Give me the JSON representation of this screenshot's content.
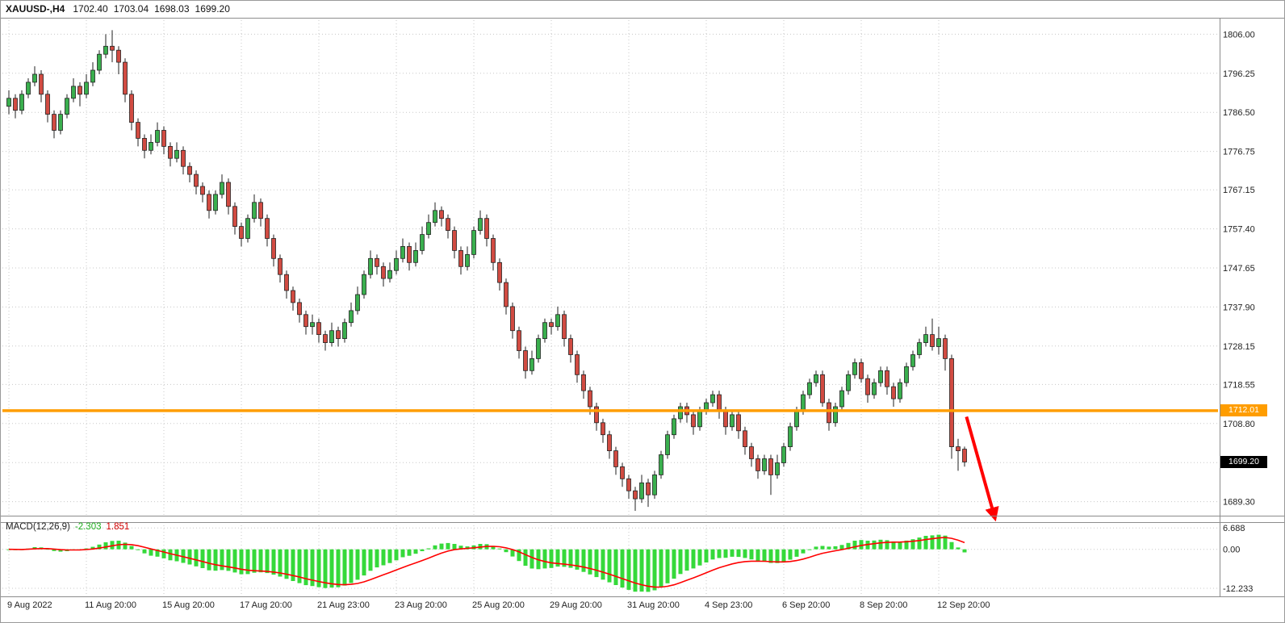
{
  "titlebar": {
    "symbol": "XAUUSD-,H4",
    "open": "1702.40",
    "high": "1703.04",
    "low": "1698.03",
    "close": "1699.20"
  },
  "indicator_label": {
    "name": "MACD(12,26,9)",
    "main_value": "-2.303",
    "signal_value": "1.851"
  },
  "overlays": {
    "hline_tag": "1712.01",
    "hline_value": 1712.01,
    "last_tag": "1699.20",
    "last_value": 1699.2
  },
  "colors": {
    "background": "#ffffff",
    "grid": "#c8c8c8",
    "up_body": "#3aaf4e",
    "down_body": "#d14b42",
    "outline": "#222222",
    "wick": "#222222",
    "hline": "#ff9d00",
    "arrow": "#ff0000",
    "macd_hist": "#35d93a",
    "macd_signal": "#ff0000",
    "tag_last_bg": "#000000",
    "axis_text": "#222222"
  },
  "chart_data": {
    "type": "candlestick",
    "title": "XAUUSD-,H4",
    "symbol": "XAUUSD",
    "timeframe": "H4",
    "grid": true,
    "price_range": [
      1686.0,
      1809.5
    ],
    "price_axis": {
      "labels": [
        "1806.00",
        "1796.25",
        "1786.50",
        "1776.75",
        "1767.15",
        "1757.40",
        "1747.65",
        "1737.90",
        "1728.15",
        "1718.55",
        "1708.80",
        "1699.05",
        "1689.30"
      ],
      "values": [
        1806.0,
        1796.25,
        1786.5,
        1776.75,
        1767.15,
        1757.4,
        1747.65,
        1737.9,
        1728.15,
        1718.55,
        1708.8,
        1699.05,
        1689.3
      ]
    },
    "time_axis": {
      "labels": [
        "9 Aug 2022",
        "11 Aug 20:00",
        "15 Aug 20:00",
        "17 Aug 20:00",
        "21 Aug 23:00",
        "23 Aug 20:00",
        "25 Aug 20:00",
        "29 Aug 20:00",
        "31 Aug 20:00",
        "4 Sep 23:00",
        "6 Sep 20:00",
        "8 Sep 20:00",
        "12 Sep 20:00"
      ],
      "candles_per_label": 12
    },
    "indicator": {
      "type": "MACD",
      "fast": 12,
      "slow": 26,
      "signal": 9,
      "current_main": -2.303,
      "current_signal": 1.851,
      "axis_labels": [
        "6.688",
        "0.00",
        "-12.233"
      ],
      "axis_values": [
        6.688,
        0,
        -12.233
      ],
      "range": [
        -14.0,
        7.5
      ]
    },
    "annotations": {
      "hline": {
        "price": 1712.01
      },
      "arrow": {
        "from_index": 148.3,
        "from_price": 1710.5,
        "to_index": 152.7,
        "to_price": 1685.2
      }
    },
    "candles": [
      [
        1788,
        1792,
        1786,
        1790
      ],
      [
        1790,
        1791,
        1785,
        1787
      ],
      [
        1787,
        1792,
        1786,
        1791
      ],
      [
        1791,
        1795,
        1790,
        1794
      ],
      [
        1794,
        1798,
        1793,
        1796
      ],
      [
        1796,
        1797,
        1789,
        1791
      ],
      [
        1791,
        1792,
        1784,
        1786
      ],
      [
        1786,
        1787,
        1780,
        1782
      ],
      [
        1782,
        1787,
        1781,
        1786
      ],
      [
        1786,
        1791,
        1785,
        1790
      ],
      [
        1790,
        1795,
        1789,
        1793
      ],
      [
        1793,
        1794,
        1788,
        1791
      ],
      [
        1791,
        1796,
        1790,
        1794
      ],
      [
        1794,
        1799,
        1793,
        1797
      ],
      [
        1797,
        1802,
        1796,
        1801
      ],
      [
        1801,
        1806,
        1800,
        1803
      ],
      [
        1803,
        1807,
        1799,
        1802
      ],
      [
        1802,
        1803,
        1796,
        1799
      ],
      [
        1799,
        1800,
        1789,
        1791
      ],
      [
        1791,
        1792,
        1782,
        1784
      ],
      [
        1784,
        1785,
        1778,
        1780
      ],
      [
        1780,
        1781,
        1775,
        1777
      ],
      [
        1777,
        1781,
        1776,
        1779
      ],
      [
        1779,
        1784,
        1778,
        1782
      ],
      [
        1782,
        1783,
        1776,
        1778
      ],
      [
        1778,
        1779,
        1773,
        1775
      ],
      [
        1775,
        1779,
        1774,
        1777
      ],
      [
        1777,
        1778,
        1771,
        1773
      ],
      [
        1773,
        1774,
        1769,
        1771
      ],
      [
        1771,
        1772,
        1766,
        1768
      ],
      [
        1768,
        1769,
        1764,
        1766
      ],
      [
        1766,
        1767,
        1760,
        1762
      ],
      [
        1762,
        1767,
        1761,
        1766
      ],
      [
        1766,
        1771,
        1765,
        1769
      ],
      [
        1769,
        1770,
        1761,
        1763
      ],
      [
        1763,
        1764,
        1756,
        1758
      ],
      [
        1758,
        1759,
        1753,
        1755
      ],
      [
        1755,
        1761,
        1754,
        1760
      ],
      [
        1760,
        1766,
        1759,
        1764
      ],
      [
        1764,
        1765,
        1758,
        1760
      ],
      [
        1760,
        1761,
        1753,
        1755
      ],
      [
        1755,
        1756,
        1748,
        1750
      ],
      [
        1750,
        1751,
        1744,
        1746
      ],
      [
        1746,
        1747,
        1740,
        1742
      ],
      [
        1742,
        1743,
        1737,
        1739
      ],
      [
        1739,
        1740,
        1734,
        1736
      ],
      [
        1736,
        1737,
        1731,
        1733
      ],
      [
        1733,
        1736,
        1731,
        1734
      ],
      [
        1734,
        1735,
        1729,
        1731
      ],
      [
        1731,
        1732,
        1727,
        1729
      ],
      [
        1729,
        1734,
        1728,
        1732
      ],
      [
        1732,
        1733,
        1728,
        1730
      ],
      [
        1730,
        1735,
        1729,
        1734
      ],
      [
        1734,
        1739,
        1733,
        1737
      ],
      [
        1737,
        1743,
        1736,
        1741
      ],
      [
        1741,
        1747,
        1740,
        1746
      ],
      [
        1746,
        1752,
        1745,
        1750
      ],
      [
        1750,
        1751,
        1746,
        1748
      ],
      [
        1748,
        1749,
        1743,
        1745
      ],
      [
        1745,
        1749,
        1744,
        1747
      ],
      [
        1747,
        1752,
        1746,
        1750
      ],
      [
        1750,
        1755,
        1749,
        1753
      ],
      [
        1753,
        1754,
        1747,
        1749
      ],
      [
        1749,
        1754,
        1748,
        1752
      ],
      [
        1752,
        1758,
        1751,
        1756
      ],
      [
        1756,
        1761,
        1755,
        1759
      ],
      [
        1759,
        1764,
        1758,
        1762
      ],
      [
        1762,
        1763,
        1758,
        1760
      ],
      [
        1760,
        1761,
        1755,
        1757
      ],
      [
        1757,
        1758,
        1750,
        1752
      ],
      [
        1752,
        1753,
        1746,
        1748
      ],
      [
        1748,
        1753,
        1747,
        1751
      ],
      [
        1751,
        1758,
        1750,
        1757
      ],
      [
        1757,
        1762,
        1756,
        1760
      ],
      [
        1760,
        1761,
        1753,
        1755
      ],
      [
        1755,
        1756,
        1747,
        1749
      ],
      [
        1749,
        1750,
        1742,
        1744
      ],
      [
        1744,
        1745,
        1736,
        1738
      ],
      [
        1738,
        1739,
        1730,
        1732
      ],
      [
        1732,
        1733,
        1725,
        1727
      ],
      [
        1727,
        1728,
        1720,
        1722
      ],
      [
        1722,
        1727,
        1721,
        1725
      ],
      [
        1725,
        1731,
        1724,
        1730
      ],
      [
        1730,
        1735,
        1729,
        1734
      ],
      [
        1734,
        1735,
        1731,
        1733
      ],
      [
        1733,
        1738,
        1732,
        1736
      ],
      [
        1736,
        1737,
        1728,
        1730
      ],
      [
        1730,
        1731,
        1724,
        1726
      ],
      [
        1726,
        1727,
        1719,
        1721
      ],
      [
        1721,
        1722,
        1715,
        1717
      ],
      [
        1717,
        1718,
        1711,
        1713
      ],
      [
        1713,
        1714,
        1707,
        1709
      ],
      [
        1709,
        1710,
        1704,
        1706
      ],
      [
        1706,
        1707,
        1700,
        1702
      ],
      [
        1702,
        1703,
        1696,
        1698
      ],
      [
        1698,
        1699,
        1693,
        1695
      ],
      [
        1695,
        1696,
        1690,
        1692
      ],
      [
        1692,
        1693,
        1687,
        1690
      ],
      [
        1690,
        1696,
        1689,
        1694
      ],
      [
        1694,
        1695,
        1688,
        1691
      ],
      [
        1691,
        1697,
        1690,
        1696
      ],
      [
        1696,
        1702,
        1695,
        1701
      ],
      [
        1701,
        1707,
        1700,
        1706
      ],
      [
        1706,
        1711,
        1705,
        1710
      ],
      [
        1710,
        1714,
        1709,
        1713
      ],
      [
        1713,
        1714,
        1709,
        1711
      ],
      [
        1711,
        1712,
        1706,
        1708
      ],
      [
        1708,
        1713,
        1707,
        1712
      ],
      [
        1712,
        1715,
        1711,
        1714
      ],
      [
        1714,
        1717,
        1713,
        1716
      ],
      [
        1716,
        1717,
        1710,
        1712
      ],
      [
        1712,
        1713,
        1706,
        1708
      ],
      [
        1708,
        1712,
        1707,
        1711
      ],
      [
        1711,
        1712,
        1705,
        1707
      ],
      [
        1707,
        1708,
        1701,
        1703
      ],
      [
        1703,
        1704,
        1698,
        1700
      ],
      [
        1700,
        1701,
        1695,
        1697
      ],
      [
        1697,
        1701,
        1696,
        1700
      ],
      [
        1700,
        1701,
        1691,
        1696
      ],
      [
        1696,
        1701,
        1695,
        1699
      ],
      [
        1699,
        1704,
        1698,
        1703
      ],
      [
        1703,
        1709,
        1702,
        1708
      ],
      [
        1708,
        1713,
        1707,
        1712
      ],
      [
        1712,
        1717,
        1711,
        1716
      ],
      [
        1716,
        1720,
        1715,
        1719
      ],
      [
        1719,
        1722,
        1718,
        1721
      ],
      [
        1721,
        1722,
        1713,
        1714
      ],
      [
        1714,
        1715,
        1707,
        1709
      ],
      [
        1709,
        1714,
        1708,
        1713
      ],
      [
        1713,
        1718,
        1712,
        1717
      ],
      [
        1717,
        1722,
        1716,
        1721
      ],
      [
        1721,
        1725,
        1720,
        1724
      ],
      [
        1724,
        1725,
        1719,
        1720
      ],
      [
        1720,
        1721,
        1714,
        1716
      ],
      [
        1716,
        1720,
        1715,
        1719
      ],
      [
        1719,
        1723,
        1718,
        1722
      ],
      [
        1722,
        1723,
        1716,
        1718
      ],
      [
        1718,
        1719,
        1713,
        1715
      ],
      [
        1715,
        1720,
        1714,
        1719
      ],
      [
        1719,
        1724,
        1718,
        1723
      ],
      [
        1723,
        1727,
        1722,
        1726
      ],
      [
        1726,
        1730,
        1725,
        1729
      ],
      [
        1729,
        1733,
        1728,
        1731
      ],
      [
        1731,
        1735,
        1727,
        1728
      ],
      [
        1728,
        1733,
        1726,
        1730
      ],
      [
        1730,
        1731,
        1722,
        1725
      ],
      [
        1725,
        1726,
        1700,
        1703
      ],
      [
        1703,
        1705,
        1697,
        1702
      ],
      [
        1702.4,
        1703.04,
        1698.03,
        1699.2
      ]
    ]
  }
}
